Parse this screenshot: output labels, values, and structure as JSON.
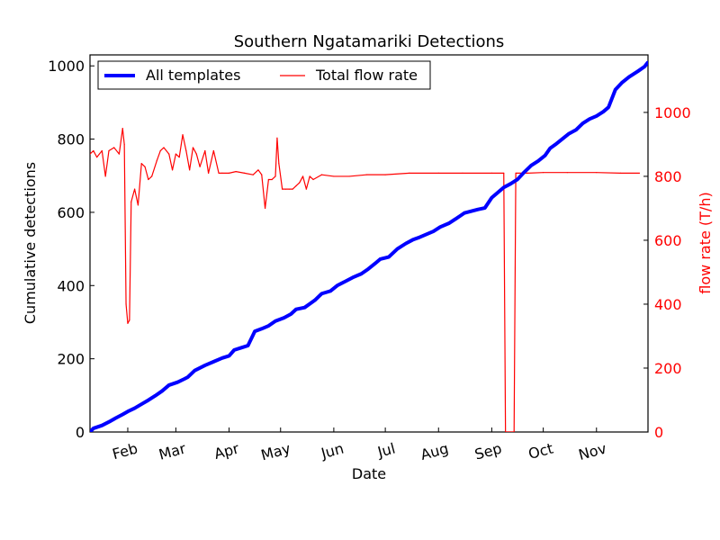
{
  "chart_data": {
    "type": "line",
    "title": "Southern Ngatamariki Detections",
    "xlabel": "Date",
    "ylabel_left": "Cumulative detections",
    "ylabel_right": "flow rate (T/h)",
    "x_ticks": [
      {
        "label": "Feb",
        "date": "2013-02-01"
      },
      {
        "label": "Mar",
        "date": "2013-03-01"
      },
      {
        "label": "Apr",
        "date": "2013-04-01"
      },
      {
        "label": "May",
        "date": "2013-05-01"
      },
      {
        "label": "Jun",
        "date": "2013-06-01"
      },
      {
        "label": "Jul",
        "date": "2013-07-01"
      },
      {
        "label": "Aug",
        "date": "2013-08-01"
      },
      {
        "label": "Sep",
        "date": "2013-09-01"
      },
      {
        "label": "Oct",
        "date": "2013-10-01"
      },
      {
        "label": "Nov",
        "date": "2013-11-01"
      }
    ],
    "xlim": [
      "2013-01-10",
      "2013-12-01"
    ],
    "ylim_left": [
      0,
      1030
    ],
    "ylim_right": [
      0,
      1180
    ],
    "yticks_left": [
      0,
      200,
      400,
      600,
      800,
      1000
    ],
    "yticks_right": [
      0,
      200,
      400,
      600,
      800,
      1000
    ],
    "legend_placement": "top-left",
    "colors": {
      "all_templates": "#0000ff",
      "flow": "#ff0000",
      "right_axis": "#ff0000"
    },
    "series": [
      {
        "name": "All templates",
        "axis": "left",
        "x": [
          "2013-01-10",
          "2013-01-12",
          "2013-01-17",
          "2013-01-22",
          "2013-01-25",
          "2013-01-29",
          "2013-02-01",
          "2013-02-05",
          "2013-02-09",
          "2013-02-13",
          "2013-02-17",
          "2013-02-21",
          "2013-02-25",
          "2013-03-02",
          "2013-03-06",
          "2013-03-08",
          "2013-03-12",
          "2013-03-15",
          "2013-03-18",
          "2013-03-23",
          "2013-03-28",
          "2013-04-01",
          "2013-04-04",
          "2013-04-08",
          "2013-04-12",
          "2013-04-16",
          "2013-04-20",
          "2013-04-24",
          "2013-04-28",
          "2013-05-03",
          "2013-05-07",
          "2013-05-10",
          "2013-05-15",
          "2013-05-18",
          "2013-05-21",
          "2013-05-25",
          "2013-05-30",
          "2013-06-03",
          "2013-06-08",
          "2013-06-12",
          "2013-06-17",
          "2013-06-21",
          "2013-06-25",
          "2013-06-28",
          "2013-07-03",
          "2013-07-08",
          "2013-07-13",
          "2013-07-17",
          "2013-07-21",
          "2013-07-25",
          "2013-07-29",
          "2013-08-02",
          "2013-08-07",
          "2013-08-11",
          "2013-08-16",
          "2013-08-20",
          "2013-08-24",
          "2013-08-28",
          "2013-09-01",
          "2013-09-06",
          "2013-09-08",
          "2013-09-12",
          "2013-09-16",
          "2013-09-20",
          "2013-09-24",
          "2013-09-28",
          "2013-10-02",
          "2013-10-05",
          "2013-10-08",
          "2013-10-12",
          "2013-10-16",
          "2013-10-20",
          "2013-10-24",
          "2013-10-28",
          "2013-11-01",
          "2013-11-05",
          "2013-11-08",
          "2013-11-12",
          "2013-11-16",
          "2013-11-20",
          "2013-11-25",
          "2013-11-29",
          "2013-12-01"
        ],
        "values": [
          0,
          10,
          18,
          30,
          38,
          48,
          56,
          65,
          76,
          87,
          99,
          112,
          128,
          136,
          145,
          150,
          168,
          175,
          182,
          192,
          202,
          208,
          224,
          230,
          236,
          275,
          282,
          290,
          303,
          312,
          322,
          335,
          340,
          350,
          360,
          378,
          385,
          400,
          412,
          422,
          432,
          445,
          460,
          472,
          478,
          500,
          515,
          525,
          532,
          540,
          548,
          560,
          570,
          582,
          598,
          603,
          608,
          612,
          640,
          660,
          668,
          678,
          690,
          710,
          728,
          740,
          755,
          775,
          785,
          800,
          815,
          825,
          843,
          855,
          863,
          875,
          887,
          935,
          955,
          970,
          985,
          998,
          1010
        ]
      },
      {
        "name": "Total flow rate",
        "axis": "right",
        "x": [
          "2013-01-10",
          "2013-01-12",
          "2013-01-14",
          "2013-01-17",
          "2013-01-19",
          "2013-01-21",
          "2013-01-24",
          "2013-01-27",
          "2013-01-29",
          "2013-01-30",
          "2013-01-31",
          "2013-02-01",
          "2013-02-02",
          "2013-02-03",
          "2013-02-05",
          "2013-02-07",
          "2013-02-09",
          "2013-02-11",
          "2013-02-13",
          "2013-02-15",
          "2013-02-18",
          "2013-02-20",
          "2013-02-22",
          "2013-02-25",
          "2013-02-27",
          "2013-03-01",
          "2013-03-03",
          "2013-03-05",
          "2013-03-07",
          "2013-03-09",
          "2013-03-11",
          "2013-03-13",
          "2013-03-15",
          "2013-03-18",
          "2013-03-20",
          "2013-03-23",
          "2013-03-26",
          "2013-03-28",
          "2013-04-01",
          "2013-04-05",
          "2013-04-10",
          "2013-04-15",
          "2013-04-18",
          "2013-04-20",
          "2013-04-22",
          "2013-04-24",
          "2013-04-26",
          "2013-04-28",
          "2013-04-29",
          "2013-04-30",
          "2013-05-02",
          "2013-05-04",
          "2013-05-06",
          "2013-05-08",
          "2013-05-10",
          "2013-05-12",
          "2013-05-14",
          "2013-05-16",
          "2013-05-18",
          "2013-05-20",
          "2013-05-25",
          "2013-06-01",
          "2013-06-10",
          "2013-06-20",
          "2013-07-01",
          "2013-07-15",
          "2013-08-01",
          "2013-08-15",
          "2013-09-01",
          "2013-09-08",
          "2013-09-09",
          "2013-09-14",
          "2013-09-15",
          "2013-09-22",
          "2013-10-01",
          "2013-10-15",
          "2013-11-01",
          "2013-11-15",
          "2013-11-26"
        ],
        "values": [
          870,
          880,
          860,
          880,
          800,
          880,
          890,
          870,
          950,
          900,
          400,
          340,
          350,
          720,
          760,
          710,
          840,
          830,
          790,
          800,
          850,
          880,
          890,
          870,
          820,
          870,
          860,
          930,
          880,
          820,
          890,
          870,
          830,
          880,
          810,
          880,
          810,
          810,
          810,
          815,
          810,
          805,
          820,
          805,
          700,
          790,
          790,
          800,
          920,
          840,
          760,
          760,
          760,
          760,
          770,
          780,
          800,
          760,
          800,
          790,
          805,
          800,
          800,
          805,
          805,
          810,
          810,
          810,
          810,
          810,
          0,
          0,
          810,
          810,
          812,
          812,
          812,
          810,
          810
        ]
      }
    ]
  }
}
